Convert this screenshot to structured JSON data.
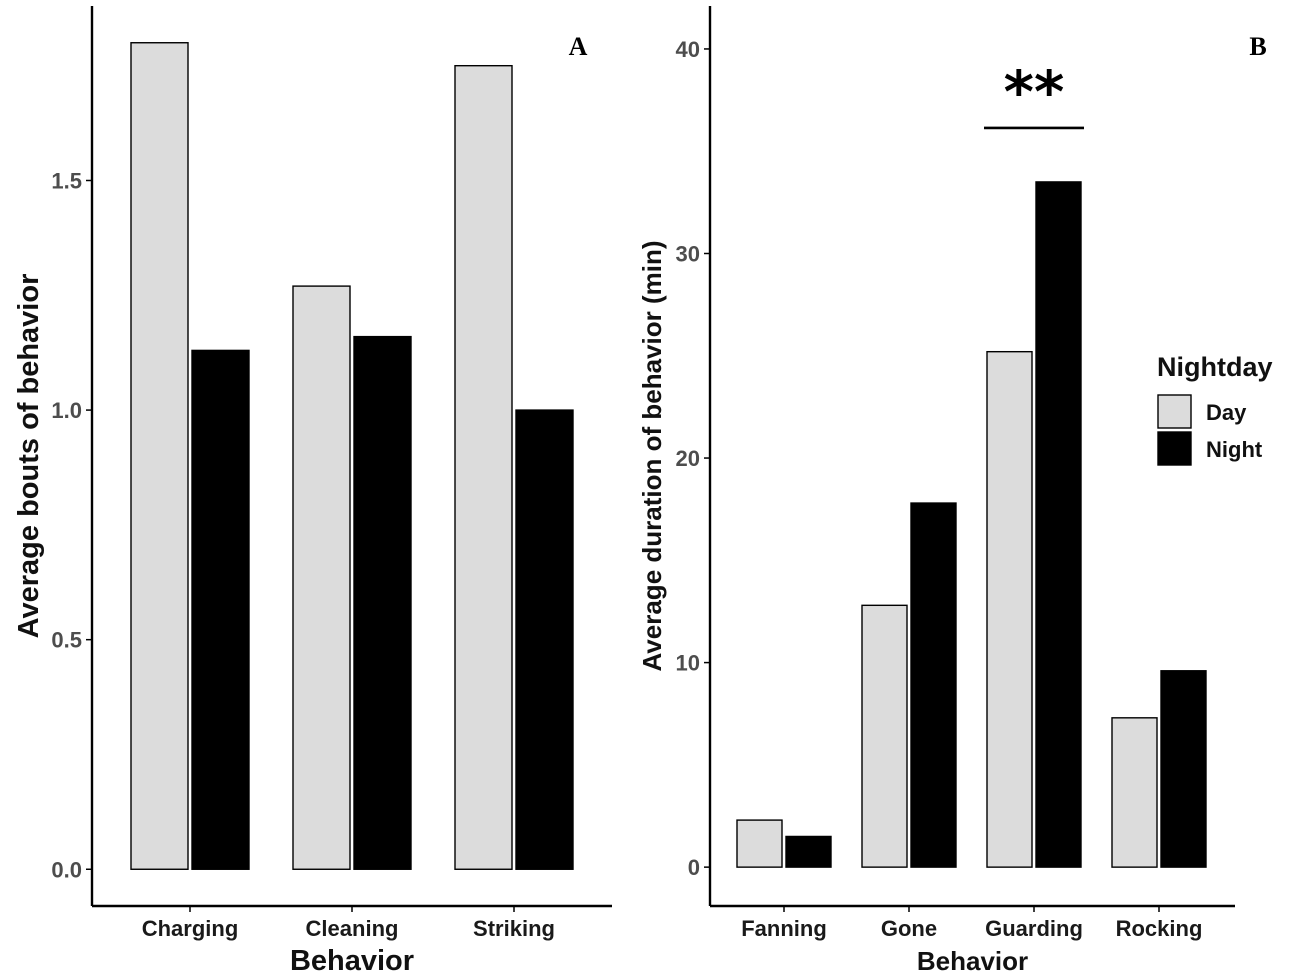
{
  "colors": {
    "Day": "#dcdcdc",
    "Night": "#000000",
    "axis": "#000000",
    "tick_text": "#4d4d4d"
  },
  "legend": {
    "title": "Nightday",
    "entries": [
      {
        "name": "Day",
        "color": "#dcdcdc"
      },
      {
        "name": "Night",
        "color": "#000000"
      }
    ],
    "placement": "right of panel B"
  },
  "chart_data": [
    {
      "type": "bar",
      "panel": "A",
      "categories": [
        "Charging",
        "Cleaning",
        "Striking"
      ],
      "series": [
        {
          "name": "Day",
          "values": [
            1.8,
            1.27,
            1.75
          ]
        },
        {
          "name": "Night",
          "values": [
            1.13,
            1.16,
            1.0
          ]
        }
      ],
      "xlabel": "Behavior",
      "ylabel": "Average bouts of behavior",
      "yticks": [
        "0.0",
        "0.5",
        "1.0",
        "1.5"
      ],
      "ylim": [
        -0.08,
        1.88
      ],
      "grid": false
    },
    {
      "type": "bar",
      "panel": "B",
      "categories": [
        "Fanning",
        "Gone",
        "Guarding",
        "Rocking"
      ],
      "series": [
        {
          "name": "Day",
          "values": [
            2.3,
            12.8,
            25.2,
            7.3
          ]
        },
        {
          "name": "Night",
          "values": [
            1.5,
            17.8,
            33.5,
            9.6
          ]
        }
      ],
      "xlabel": "Behavior",
      "ylabel": "Average duration of behavior (min)",
      "yticks": [
        "0",
        "10",
        "20",
        "30",
        "40"
      ],
      "ylim": [
        -1.9,
        42.1
      ],
      "grid": false,
      "annotations": [
        {
          "text": "**",
          "category": "Guarding",
          "type": "significance bracket"
        }
      ]
    }
  ]
}
